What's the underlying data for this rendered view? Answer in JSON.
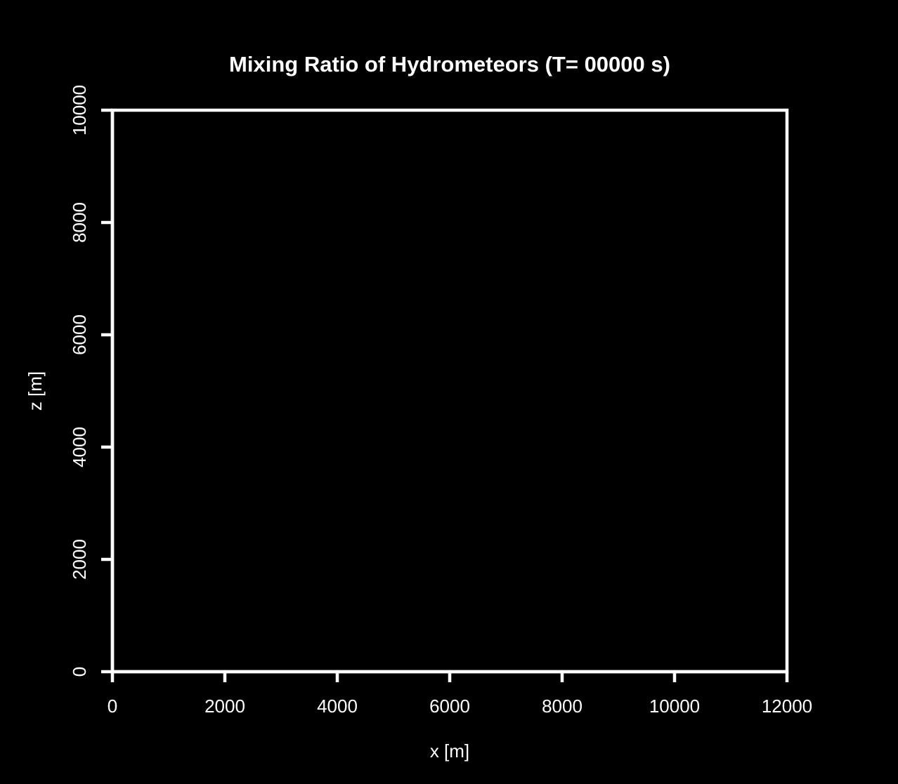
{
  "chart_data": {
    "type": "heatmap",
    "title": "Mixing Ratio of Hydrometeors (T= 00000 s)",
    "xlabel": "x [m]",
    "ylabel": "z [m]",
    "xlim": [
      0,
      12000
    ],
    "ylim": [
      0,
      10000
    ],
    "x_ticks": [
      0,
      2000,
      4000,
      6000,
      8000,
      10000,
      12000
    ],
    "x_tick_labels": [
      "0",
      "2000",
      "4000",
      "6000",
      "8000",
      "10000",
      "12000"
    ],
    "y_ticks": [
      0,
      2000,
      4000,
      6000,
      8000,
      10000
    ],
    "y_tick_labels": [
      "0",
      "2000",
      "4000",
      "6000",
      "8000",
      "10000"
    ],
    "grid": false,
    "series": [],
    "colors": {
      "background": "#000000",
      "foreground": "#ffffff"
    }
  }
}
